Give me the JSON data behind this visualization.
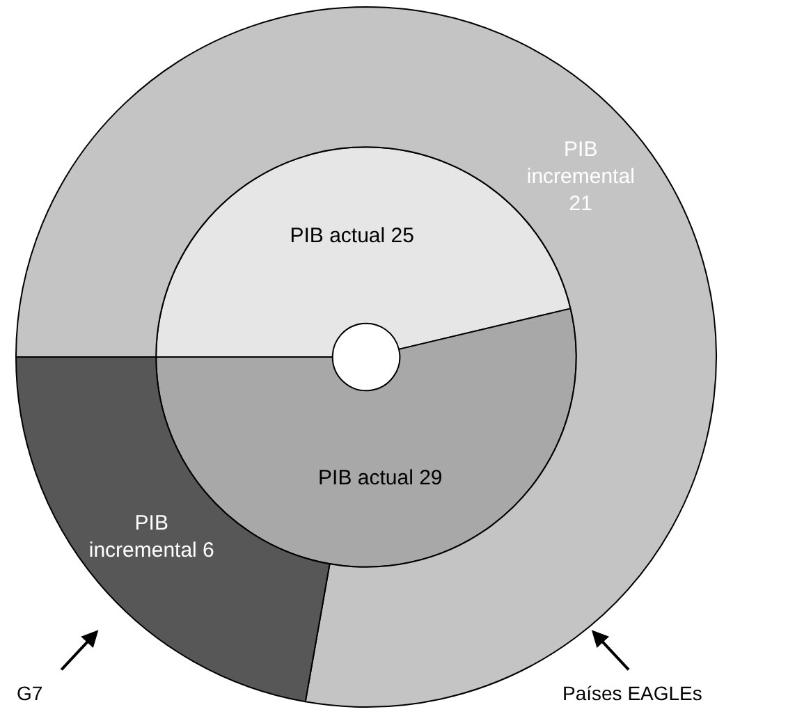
{
  "chart_data": {
    "type": "donut",
    "series": [
      {
        "values": [
          25,
          29
        ],
        "value_labels": [
          "PIB actual 25",
          "PIB actual 29"
        ],
        "colors": [
          "#e6e6e6",
          "#a8a8a8"
        ]
      },
      {
        "values": [
          21,
          6
        ],
        "value_labels": [
          "PIB incremental 21",
          "PIB incremental 6"
        ],
        "colors": [
          "#c4c4c4",
          "#575757"
        ]
      }
    ],
    "legend": false,
    "annotations": [
      "G7",
      "Países EAGLEs"
    ]
  }
}
